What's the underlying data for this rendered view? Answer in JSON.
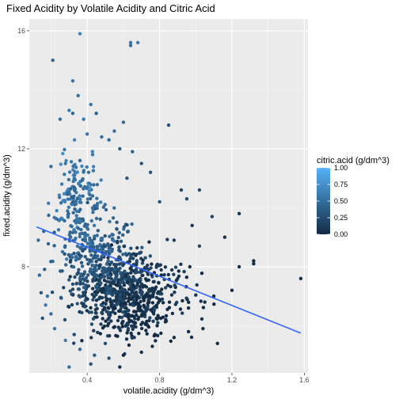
{
  "chart_data": {
    "type": "scatter",
    "title": "Fixed Acidity by Volatile Acidity and Citric Acid",
    "xlabel": "volatile.acidity (g/dm^3)",
    "ylabel": "fixed.acidity (g/dm^3)",
    "xlim": [
      0.08,
      1.62
    ],
    "ylim": [
      4.4,
      16.4
    ],
    "x_ticks": [
      0.4,
      0.8,
      1.2,
      1.6
    ],
    "y_ticks": [
      8,
      12,
      16
    ],
    "x_tick_labels": [
      "0.4",
      "0.8",
      "1.2",
      "1.6"
    ],
    "y_tick_labels": [
      "8",
      "12",
      "16"
    ],
    "grid": true,
    "colorbar": {
      "title": "citric.acid (g/dm^3)",
      "range": [
        0,
        1
      ],
      "ticks": [
        0,
        0.25,
        0.5,
        0.75,
        1
      ],
      "tick_labels": [
        "0.00",
        "0.25",
        "0.50",
        "0.75",
        "1.00"
      ],
      "low_color": "#132B43",
      "high_color": "#56B1F7"
    },
    "trend_line": {
      "kind": "linear fit",
      "x": [
        0.12,
        1.58
      ],
      "y": [
        9.35,
        5.75
      ],
      "color": "#3366FF"
    },
    "points": {
      "comment_fields": [
        "volatile.acidity",
        "fixed.acidity",
        "citric.acid"
      ],
      "values": [
        [
          0.36,
          15.9,
          0.65
        ],
        [
          0.21,
          15.0,
          0.45
        ],
        [
          0.64,
          15.6,
          0.55
        ],
        [
          0.64,
          15.5,
          0.5
        ],
        [
          0.68,
          15.6,
          0.6
        ],
        [
          0.32,
          14.3,
          0.55
        ],
        [
          0.35,
          13.8,
          0.5
        ],
        [
          0.3,
          13.3,
          0.6
        ],
        [
          0.32,
          13.2,
          0.45
        ],
        [
          0.42,
          13.5,
          0.55
        ],
        [
          0.25,
          13.0,
          0.5
        ],
        [
          0.38,
          13.0,
          0.6
        ],
        [
          0.45,
          13.2,
          0.4
        ],
        [
          0.85,
          12.8,
          0.3
        ],
        [
          0.6,
          12.9,
          0.45
        ],
        [
          0.55,
          12.6,
          0.5
        ],
        [
          0.4,
          12.5,
          0.55
        ],
        [
          0.48,
          12.4,
          0.5
        ],
        [
          0.33,
          12.3,
          0.65
        ],
        [
          0.52,
          12.3,
          0.45
        ],
        [
          0.58,
          12.0,
          0.35
        ],
        [
          0.65,
          11.9,
          0.4
        ],
        [
          0.43,
          11.8,
          0.6
        ],
        [
          0.36,
          11.6,
          0.5
        ],
        [
          0.28,
          11.5,
          0.55
        ],
        [
          0.7,
          11.5,
          0.3
        ],
        [
          0.2,
          11.4,
          0.5
        ],
        [
          0.75,
          11.2,
          0.3
        ],
        [
          0.62,
          11.0,
          0.35
        ],
        [
          0.26,
          10.8,
          0.6
        ],
        [
          0.92,
          10.6,
          0.2
        ],
        [
          1.02,
          10.6,
          0.2
        ],
        [
          0.95,
          10.3,
          0.25
        ],
        [
          0.8,
          10.2,
          0.3
        ],
        [
          1.24,
          9.8,
          0.1
        ],
        [
          1.09,
          9.7,
          0.2
        ],
        [
          0.98,
          9.4,
          0.1
        ],
        [
          1.16,
          9.0,
          0.05
        ],
        [
          0.88,
          8.9,
          0.15
        ],
        [
          1.02,
          8.7,
          0.2
        ],
        [
          0.13,
          8.9,
          0.5
        ],
        [
          0.16,
          9.2,
          0.45
        ],
        [
          1.32,
          8.2,
          0.0
        ],
        [
          1.32,
          8.1,
          0.0
        ],
        [
          1.58,
          7.6,
          0.0
        ],
        [
          1.24,
          8.0,
          0.05
        ],
        [
          1.2,
          7.2,
          0.0
        ],
        [
          1.1,
          7.0,
          0.0
        ],
        [
          1.05,
          6.8,
          0.05
        ],
        [
          0.96,
          6.6,
          0.0
        ],
        [
          0.18,
          7.0,
          0.55
        ],
        [
          0.17,
          6.7,
          0.6
        ],
        [
          0.2,
          6.4,
          0.5
        ],
        [
          0.22,
          5.9,
          0.55
        ],
        [
          0.28,
          5.5,
          0.6
        ],
        [
          0.36,
          5.2,
          0.5
        ],
        [
          0.44,
          5.0,
          0.35
        ],
        [
          0.52,
          4.9,
          0.3
        ],
        [
          0.6,
          5.0,
          0.0
        ],
        [
          0.7,
          5.1,
          0.05
        ],
        [
          0.76,
          5.3,
          0.05
        ],
        [
          0.88,
          5.6,
          0.0
        ],
        [
          0.96,
          5.8,
          0.0
        ],
        [
          1.04,
          5.9,
          0.05
        ],
        [
          1.12,
          5.4,
          0.0
        ],
        [
          0.58,
          4.6,
          0.0
        ],
        [
          0.3,
          4.6,
          0.5
        ],
        [
          0.42,
          4.7,
          0.3
        ],
        [
          0.5,
          5.4,
          0.25
        ],
        [
          0.66,
          5.6,
          0.1
        ]
      ]
    },
    "cloud": {
      "comment_fields": [
        "center_x",
        "center_y",
        "spread_x",
        "spread_y",
        "citric_mean",
        "citric_slope_per_y",
        "count"
      ],
      "clusters": [
        [
          0.56,
          7.1,
          0.12,
          0.55,
          0.12,
          0.06,
          260
        ],
        [
          0.62,
          7.4,
          0.11,
          0.75,
          0.1,
          0.06,
          200
        ],
        [
          0.48,
          7.9,
          0.1,
          0.75,
          0.3,
          0.08,
          160
        ],
        [
          0.4,
          8.6,
          0.09,
          0.85,
          0.42,
          0.08,
          140
        ],
        [
          0.36,
          9.8,
          0.07,
          0.8,
          0.5,
          0.05,
          110
        ],
        [
          0.32,
          10.9,
          0.06,
          0.6,
          0.55,
          0.05,
          60
        ],
        [
          0.76,
          7.0,
          0.13,
          0.65,
          0.05,
          0.02,
          110
        ],
        [
          0.66,
          6.3,
          0.1,
          0.4,
          0.05,
          0.03,
          90
        ]
      ]
    }
  }
}
